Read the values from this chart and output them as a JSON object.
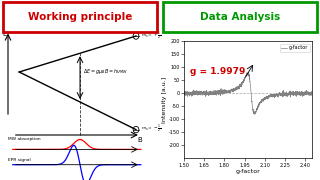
{
  "title_left": "Working principle",
  "title_right": "Data Analysis",
  "title_left_color": "#cc0000",
  "title_right_color": "#009900",
  "title_left_box_color": "#cc0000",
  "title_right_box_color": "#009900",
  "g_value": "g = 1.9979",
  "g_value_color": "#cc0000",
  "g_factor_peak": 1.9979,
  "xlabel_right": "g-factor",
  "ylabel_right": "Intensity [a.u.]",
  "ylim_right": [
    -250,
    200
  ],
  "xlim_right": [
    1.5,
    2.45
  ],
  "yticks_right": [
    -200,
    -150,
    -100,
    -50,
    0,
    50,
    100,
    150,
    200
  ],
  "xticks_right": [
    1.5,
    1.65,
    1.8,
    1.95,
    2.1,
    2.25,
    2.4
  ],
  "background_color": "#ffffff",
  "legend_label": "g-factor"
}
